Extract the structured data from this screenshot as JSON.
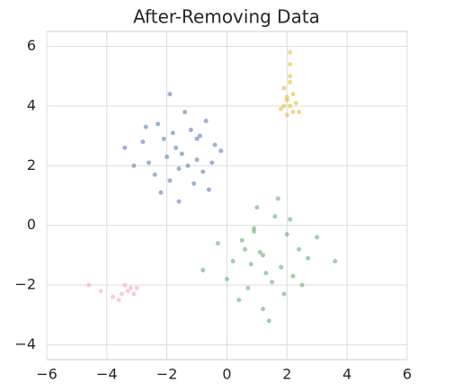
{
  "chart_data": {
    "type": "scatter",
    "title": "After-Removing Data",
    "xlim": [
      -6,
      6
    ],
    "ylim": [
      -4.5,
      6.5
    ],
    "xticks": [
      {
        "value": -6,
        "label": "−6"
      },
      {
        "value": -4,
        "label": "−4"
      },
      {
        "value": -2,
        "label": "−2"
      },
      0,
      2,
      4,
      6
    ],
    "yticks": [
      {
        "value": -4,
        "label": "−4"
      },
      {
        "value": -2,
        "label": "−2"
      },
      0,
      2,
      4,
      6
    ],
    "grid": true,
    "series": [
      {
        "color": "#4c72b0",
        "x": [
          -1.5,
          -2.1,
          -0.8,
          -1.2,
          -2.6,
          -1.9,
          -0.4,
          -1.0,
          -2.3,
          -1.7,
          -3.1,
          -0.6,
          -1.4,
          -2.0,
          -0.9,
          -1.6,
          -2.8,
          -1.1,
          -0.2,
          -1.8,
          -2.4,
          -1.3,
          -0.7,
          -3.4,
          -1.9,
          -1.0,
          -2.2,
          -0.5,
          -1.6,
          -2.7
        ],
        "y": [
          2.4,
          2.9,
          1.8,
          3.2,
          2.1,
          1.5,
          2.7,
          2.2,
          3.4,
          2.6,
          2.0,
          1.2,
          3.8,
          2.3,
          3.0,
          1.9,
          2.8,
          1.4,
          2.5,
          3.1,
          1.7,
          2.0,
          3.5,
          2.6,
          4.4,
          2.9,
          1.1,
          2.1,
          0.8,
          3.3
        ]
      },
      {
        "color": "#55a868",
        "x": [
          1.2,
          0.5,
          1.8,
          0.9,
          2.4,
          1.5,
          0.2,
          1.0,
          2.0,
          0.7,
          1.3,
          2.7,
          -0.3,
          1.6,
          0.4,
          2.2,
          1.1,
          0.8,
          3.0,
          1.9,
          -0.8,
          1.4,
          2.5,
          0.6,
          1.7,
          3.6,
          0.0,
          1.2,
          2.1,
          0.9
        ],
        "y": [
          -1.0,
          -0.5,
          -1.4,
          -0.1,
          -0.8,
          -1.9,
          -1.2,
          0.6,
          -0.3,
          -2.1,
          -1.6,
          -1.1,
          -0.6,
          0.3,
          -2.5,
          -1.7,
          -0.9,
          -1.3,
          -0.4,
          -2.3,
          -1.5,
          -3.2,
          -2.0,
          -0.8,
          0.9,
          -1.2,
          -1.8,
          -2.8,
          0.2,
          -0.2
        ]
      },
      {
        "color": "#e8b52a",
        "x": [
          2.1,
          2.0,
          2.2,
          1.9,
          2.1,
          2.3,
          2.0,
          2.1,
          1.8,
          2.2,
          2.1,
          2.0,
          2.4,
          2.1,
          1.9
        ],
        "y": [
          4.0,
          4.3,
          3.8,
          4.6,
          5.0,
          4.1,
          3.7,
          5.4,
          3.9,
          4.4,
          4.8,
          4.2,
          3.8,
          5.8,
          4.0
        ]
      },
      {
        "color": "#f4a6b8",
        "x": [
          -3.3,
          -3.5,
          -3.2,
          -3.8,
          -3.4,
          -3.1,
          -4.2,
          -3.6,
          -3.0,
          -4.6
        ],
        "y": [
          -2.2,
          -2.3,
          -2.1,
          -2.4,
          -2.0,
          -2.3,
          -2.2,
          -2.5,
          -2.1,
          -2.0
        ]
      }
    ]
  }
}
